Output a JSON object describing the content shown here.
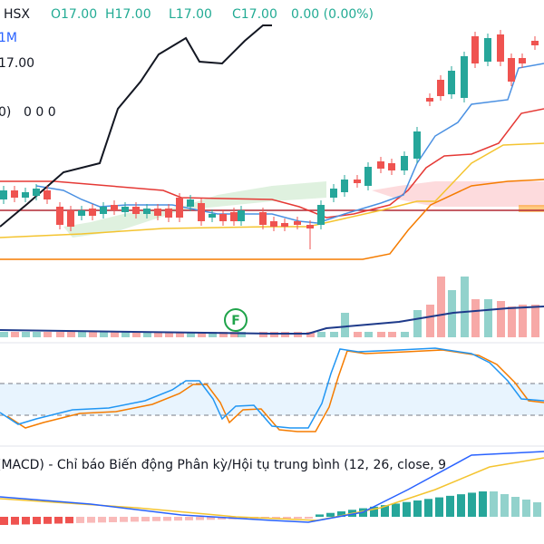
{
  "legend": {
    "symbol": "HSX",
    "open": "O17.00",
    "high": "H17.00",
    "low": "L17.00",
    "close": "C17.00",
    "change": "0.00 (0.00%)"
  },
  "interval": "1M",
  "price": "17.00",
  "indicator": {
    "suffix": "0)",
    "values": "0 0 0"
  },
  "marker": "F",
  "macd_title": "(MACD) - Chỉ báo Biến động Phân kỳ/Hội tụ trung bình (12, 26, close, 9"
}
